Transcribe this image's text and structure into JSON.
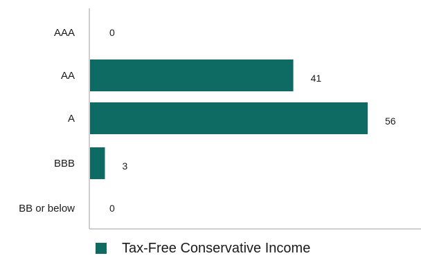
{
  "chart_data": {
    "type": "bar",
    "orientation": "horizontal",
    "categories": [
      "AAA",
      "AA",
      "A",
      "BBB",
      "BB or below"
    ],
    "series": [
      {
        "name": "Tax-Free Conservative Income",
        "values": [
          0,
          41,
          56,
          3,
          0
        ],
        "color": "#0e6b63"
      }
    ],
    "data_labels": [
      "0",
      "41",
      "56",
      "3",
      "0"
    ],
    "xlim": [
      0,
      56
    ],
    "grid": false,
    "legend": "bottom"
  }
}
